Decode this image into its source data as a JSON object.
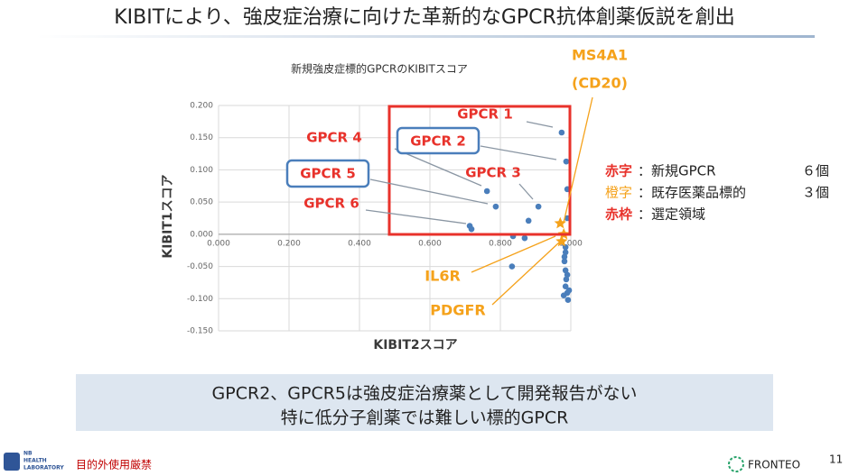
{
  "header": {
    "title": "KIBITにより、強皮症治療に向けた革新的なGPCR抗体創薬仮説を創出"
  },
  "chart_data": {
    "type": "scatter",
    "title": "新規強皮症標的GPCRのKIBITスコア",
    "xlabel": "KIBIT2スコア",
    "ylabel": "KIBIT1スコア",
    "xlim": [
      0,
      1
    ],
    "ylim": [
      -0.15,
      0.2
    ],
    "xticks": [
      {
        "value": 0,
        "label": "0.000"
      },
      {
        "value": 0.2,
        "label": "0.200"
      },
      {
        "value": 0.4,
        "label": "0.400"
      },
      {
        "value": 0.6,
        "label": "0.600"
      },
      {
        "value": 0.8,
        "label": "0.800"
      },
      {
        "value": 1,
        "label": "1.000"
      }
    ],
    "yticks": [
      {
        "value": 0.2,
        "label": "0.200"
      },
      {
        "value": 0.15,
        "label": "0.150"
      },
      {
        "value": 0.1,
        "label": "0.100"
      },
      {
        "value": 0.05,
        "label": "0.050"
      },
      {
        "value": 0,
        "label": "0.000"
      },
      {
        "value": -0.05,
        "label": "-0.050"
      },
      {
        "value": -0.1,
        "label": "-0.100"
      },
      {
        "value": -0.15,
        "label": "-0.150"
      }
    ],
    "grid": true,
    "series": [
      {
        "color": "#4a7ebb",
        "marker": "circle",
        "x": [
          0.974,
          0.987,
          0.99,
          0.762,
          0.787,
          0.908,
          0.713,
          0.718,
          0.99,
          0.88,
          0.836,
          0.869,
          0.833,
          0.985,
          0.982,
          0.985,
          0.987,
          0.985,
          0.99,
          0.992,
          0.98,
          0.995,
          0.982,
          0.985,
          0.99
        ],
        "values": [
          0.158,
          0.113,
          0.07,
          0.067,
          0.043,
          0.043,
          0.013,
          0.008,
          0.025,
          0.021,
          -0.003,
          -0.006,
          -0.05,
          -0.028,
          -0.042,
          -0.056,
          -0.07,
          -0.081,
          -0.091,
          -0.102,
          -0.095,
          -0.087,
          -0.035,
          -0.02,
          -0.063
        ]
      },
      {
        "color": "#f5a21b",
        "marker": "star",
        "x": [
          0.97,
          0.98,
          0.974
        ],
        "values": [
          0.017,
          0,
          -0.011
        ]
      }
    ],
    "annotations": [
      "GPCR 1",
      "GPCR 2",
      "GPCR 3",
      "GPCR 4",
      "GPCR 5",
      "GPCR 6",
      "MS4A1",
      "(CD20)",
      "IL6R",
      "PDGFR"
    ]
  },
  "notes": [
    {
      "key": "赤字",
      "text": "：新規GPCR",
      "count": "６個"
    },
    {
      "key": "橙字",
      "text": "：既存医薬品標的",
      "count": "３個"
    },
    {
      "key": "赤枠",
      "text": "：選定領域"
    }
  ],
  "summary": [
    "GPCR2、GPCR5は強皮症治療薬として開発報告がない",
    "特に低分子創薬では難しい標的GPCR"
  ],
  "footer": {
    "logo": [
      "NB",
      "HEALTH",
      "LABORATORY"
    ],
    "notice": "目的外使用厳禁",
    "company": "FRONTEO",
    "page": "11"
  }
}
